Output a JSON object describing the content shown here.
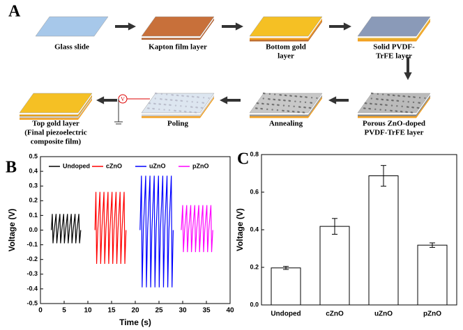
{
  "panels": [
    "A",
    "B",
    "C"
  ],
  "diagram": {
    "steps": [
      {
        "lines": [
          "Glass slide"
        ]
      },
      {
        "lines": [
          "Kapton film layer"
        ]
      },
      {
        "lines": [
          "Bottom gold",
          "layer"
        ]
      },
      {
        "lines": [
          "Solid PVDF-",
          "TrFE layer"
        ]
      },
      {
        "lines": [
          "Porous ZnO-doped",
          "PVDF-TrFE layer"
        ]
      },
      {
        "lines": [
          "Annealing"
        ]
      },
      {
        "lines": [
          "Poling"
        ]
      },
      {
        "lines": [
          "Top gold layer",
          "(Final piezoelectric",
          "composite film)"
        ]
      }
    ],
    "source_symbol": "V"
  },
  "chart_data": [
    {
      "type": "line",
      "xlabel": "Time (s)",
      "ylabel": "Voltage (V)",
      "xlim": [
        0,
        40
      ],
      "xticks": [
        0,
        5,
        10,
        15,
        20,
        25,
        30,
        35,
        40
      ],
      "ylim": [
        -0.5,
        0.5
      ],
      "yticks": [
        0.5,
        0.4,
        0.3,
        0.2,
        0.1,
        {
          "value": 0,
          "label": "0.0"
        },
        -0.1,
        -0.2,
        -0.3,
        -0.4,
        -0.5
      ],
      "series": [
        {
          "name": "Undoped",
          "color": "#000000",
          "x": [
            2.3,
            2.5,
            2.65,
            2.9,
            3.3,
            3.45,
            3.7,
            4.1,
            4.25,
            4.5,
            4.9,
            5.05,
            5.3,
            5.7,
            5.85,
            6.1,
            6.5,
            6.65,
            6.9,
            7.3,
            7.45,
            7.7,
            8.1,
            8.25,
            8.5
          ],
          "values": [
            0,
            0.11,
            -0.09,
            0,
            0.11,
            -0.09,
            0,
            0.11,
            -0.09,
            0,
            0.11,
            -0.09,
            0,
            0.11,
            -0.09,
            0,
            0.11,
            -0.09,
            0,
            0.11,
            -0.09,
            0,
            0.11,
            -0.09,
            0
          ]
        },
        {
          "name": "cZnO",
          "color": "#ff0000",
          "x": [
            11.5,
            11.7,
            11.85,
            12.1,
            12.55,
            12.7,
            12.95,
            13.4,
            13.55,
            13.8,
            14.25,
            14.4,
            14.65,
            15.1,
            15.25,
            15.5,
            15.95,
            16.1,
            16.35,
            16.8,
            16.95,
            17.2,
            17.65,
            17.8,
            18.05
          ],
          "values": [
            0,
            0.26,
            -0.23,
            0,
            0.26,
            -0.23,
            0,
            0.26,
            -0.23,
            0,
            0.26,
            -0.23,
            0,
            0.26,
            -0.23,
            0,
            0.26,
            -0.23,
            0,
            0.26,
            -0.23,
            0,
            0.26,
            -0.23,
            0
          ]
        },
        {
          "name": "uZnO",
          "color": "#0000ff",
          "x": [
            21.0,
            21.3,
            21.45,
            21.7,
            22.2,
            22.35,
            22.6,
            23.1,
            23.25,
            23.5,
            24.0,
            24.15,
            24.4,
            24.9,
            25.05,
            25.3,
            25.8,
            25.95,
            26.2,
            26.7,
            26.85,
            27.1,
            27.6,
            27.75,
            28.0
          ],
          "values": [
            0,
            0.37,
            -0.39,
            0,
            0.37,
            -0.39,
            0,
            0.37,
            -0.39,
            0,
            0.37,
            -0.39,
            0,
            0.37,
            -0.39,
            0,
            0.37,
            -0.39,
            0,
            0.37,
            -0.39,
            0,
            0.37,
            -0.39,
            0
          ]
        },
        {
          "name": "pZnO",
          "color": "#ff00ff",
          "x": [
            29.7,
            30.0,
            30.15,
            30.4,
            30.85,
            31.0,
            31.25,
            31.7,
            31.85,
            32.1,
            32.55,
            32.7,
            32.95,
            33.4,
            33.55,
            33.8,
            34.25,
            34.4,
            34.65,
            35.1,
            35.25,
            35.5,
            35.95,
            36.1,
            36.35
          ],
          "values": [
            0,
            0.17,
            -0.15,
            0,
            0.17,
            -0.15,
            0,
            0.17,
            -0.15,
            0,
            0.17,
            -0.15,
            0,
            0.17,
            -0.15,
            0,
            0.17,
            -0.15,
            0,
            0.17,
            -0.15,
            0,
            0.17,
            -0.15,
            0
          ]
        }
      ]
    },
    {
      "type": "bar",
      "ylabel": "Voltage (V)",
      "categories": [
        "Undoped",
        "cZnO",
        "uZnO",
        "pZnO"
      ],
      "values": [
        0.197,
        0.418,
        0.687,
        0.318
      ],
      "errors": [
        0.008,
        0.042,
        0.055,
        0.012
      ],
      "color": "#ffffff",
      "ylim": [
        0,
        0.8
      ],
      "yticks": [
        {
          "value": 0,
          "label": "0.0"
        },
        0.2,
        0.4,
        0.6,
        0.8
      ]
    }
  ]
}
